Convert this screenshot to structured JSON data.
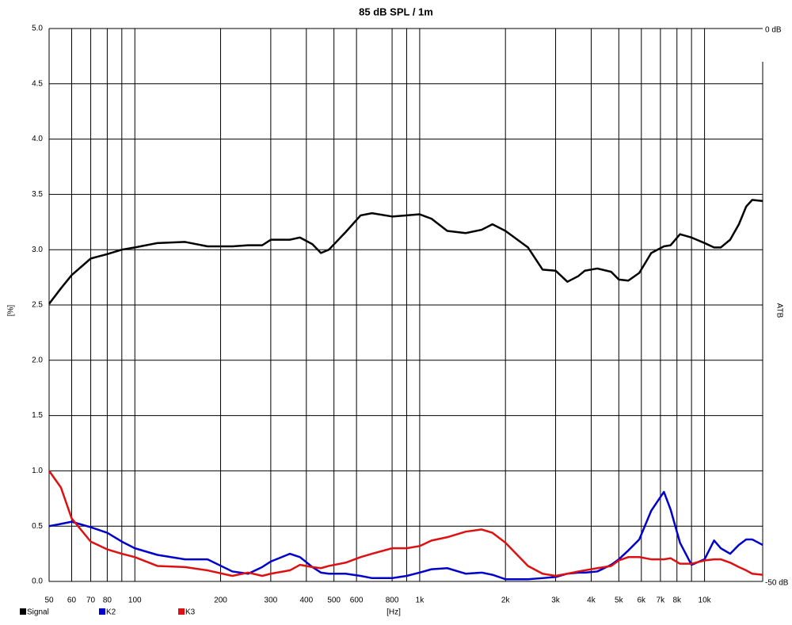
{
  "chart_data": {
    "type": "line",
    "title": "85 dB SPL / 1m",
    "x_label": "[Hz]",
    "y_label": "[%]",
    "y2_label": "ATB",
    "x_scale": "log",
    "grid": true,
    "xlim": [
      50,
      16000
    ],
    "ylim": [
      0,
      5
    ],
    "y2lim": [
      -50,
      0
    ],
    "xticks": [
      50,
      60,
      70,
      80,
      {
        "value": 90,
        "label": null
      },
      100,
      200,
      300,
      400,
      500,
      600,
      800,
      {
        "value": 900,
        "label": null
      },
      {
        "value": 1000,
        "label": "1k"
      },
      {
        "value": 2000,
        "label": "2k"
      },
      {
        "value": 3000,
        "label": "3k"
      },
      {
        "value": 4000,
        "label": "4k"
      },
      {
        "value": 5000,
        "label": "5k"
      },
      {
        "value": 6000,
        "label": "6k"
      },
      {
        "value": 7000,
        "label": "7k"
      },
      {
        "value": 8000,
        "label": "8k"
      },
      {
        "value": 9000,
        "label": null
      },
      {
        "value": 10000,
        "label": "10k"
      }
    ],
    "yticks": [
      {
        "value": 0,
        "label": "0.0"
      },
      0.5,
      {
        "value": 1,
        "label": "1.0"
      },
      1.5,
      {
        "value": 2,
        "label": "2.0"
      },
      2.5,
      {
        "value": 3,
        "label": "3.0"
      },
      3.5,
      {
        "value": 4,
        "label": "4.0"
      },
      4.5,
      {
        "value": 5,
        "label": "5.0"
      }
    ],
    "y2ticks": [
      {
        "value": -50,
        "label": "-50 dB"
      },
      {
        "value": 0,
        "label": "0 dB"
      }
    ],
    "x": [
      50,
      55,
      60,
      70,
      80,
      90,
      100,
      120,
      150,
      180,
      220,
      250,
      280,
      300,
      350,
      380,
      420,
      450,
      480,
      550,
      620,
      680,
      800,
      900,
      1000,
      1100,
      1250,
      1450,
      1650,
      1800,
      2000,
      2400,
      2700,
      3000,
      3300,
      3600,
      3800,
      4200,
      4700,
      5000,
      5400,
      5900,
      6500,
      7200,
      7600,
      8200,
      9000,
      10000,
      10800,
      11400,
      12300,
      13200,
      14000,
      14700,
      16000
    ],
    "series": [
      {
        "name": "Signal",
        "color": "#000000",
        "values": [
          2.51,
          2.65,
          2.77,
          2.92,
          2.96,
          3.0,
          3.02,
          3.06,
          3.07,
          3.03,
          3.03,
          3.04,
          3.04,
          3.09,
          3.09,
          3.11,
          3.05,
          2.97,
          3.0,
          3.16,
          3.31,
          3.33,
          3.3,
          3.31,
          3.32,
          3.28,
          3.17,
          3.15,
          3.18,
          3.23,
          3.17,
          3.02,
          2.82,
          2.81,
          2.71,
          2.76,
          2.81,
          2.83,
          2.8,
          2.73,
          2.72,
          2.79,
          2.97,
          3.03,
          3.04,
          3.14,
          3.11,
          3.06,
          3.02,
          3.02,
          3.09,
          3.23,
          3.39,
          3.45,
          3.44
        ]
      },
      {
        "name": "K2",
        "color": "#0000cc",
        "values": [
          0.5,
          0.52,
          0.54,
          0.49,
          0.44,
          0.36,
          0.3,
          0.24,
          0.2,
          0.2,
          0.09,
          0.07,
          0.13,
          0.18,
          0.25,
          0.22,
          0.13,
          0.08,
          0.07,
          0.07,
          0.05,
          0.03,
          0.03,
          0.05,
          0.08,
          0.11,
          0.12,
          0.07,
          0.08,
          0.06,
          0.02,
          0.02,
          0.03,
          0.04,
          0.07,
          0.08,
          0.08,
          0.09,
          0.15,
          0.2,
          0.28,
          0.38,
          0.64,
          0.81,
          0.65,
          0.35,
          0.15,
          0.2,
          0.37,
          0.3,
          0.25,
          0.33,
          0.38,
          0.38,
          0.33
        ]
      },
      {
        "name": "K3",
        "color": "#dd1111",
        "values": [
          1.0,
          0.85,
          0.57,
          0.36,
          0.29,
          0.25,
          0.22,
          0.14,
          0.13,
          0.1,
          0.05,
          0.08,
          0.05,
          0.07,
          0.1,
          0.15,
          0.13,
          0.12,
          0.14,
          0.17,
          0.22,
          0.25,
          0.3,
          0.3,
          0.32,
          0.37,
          0.4,
          0.45,
          0.47,
          0.44,
          0.35,
          0.14,
          0.07,
          0.05,
          0.07,
          0.09,
          0.1,
          0.12,
          0.14,
          0.19,
          0.22,
          0.22,
          0.2,
          0.2,
          0.21,
          0.16,
          0.16,
          0.19,
          0.2,
          0.2,
          0.17,
          0.13,
          0.1,
          0.07,
          0.06
        ]
      }
    ]
  }
}
